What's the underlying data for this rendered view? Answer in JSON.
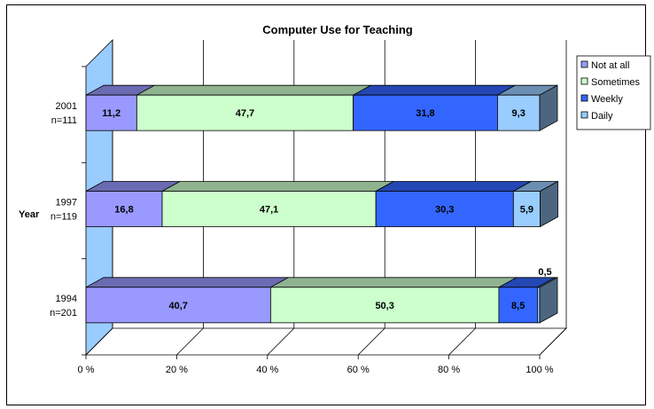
{
  "chart_data": {
    "type": "bar",
    "orientation": "horizontal",
    "stacked": "percent",
    "three_d": true,
    "title": "Computer Use for Teaching",
    "ylabel": "Year",
    "xlabel": "",
    "categories": [
      {
        "line1": "1994",
        "line2": "n=201"
      },
      {
        "line1": "1997",
        "line2": "n=119"
      },
      {
        "line1": "2001",
        "line2": "n=111"
      }
    ],
    "series": [
      {
        "name": "Not at all",
        "values": [
          40.7,
          16.8,
          11.2
        ],
        "labels": [
          "40,7",
          "16,8",
          "11,2"
        ],
        "color": "#9999ff"
      },
      {
        "name": "Sometimes",
        "values": [
          50.3,
          47.1,
          47.7
        ],
        "labels": [
          "50,3",
          "47,1",
          "47,7"
        ],
        "color": "#ccffcc"
      },
      {
        "name": "Weekly",
        "values": [
          8.5,
          30.3,
          31.8
        ],
        "labels": [
          "8,5",
          "30,3",
          "31,8"
        ],
        "color": "#3366ff"
      },
      {
        "name": "Daily",
        "values": [
          0.5,
          5.9,
          9.3
        ],
        "labels": [
          "0,5",
          "5,9",
          "9,3"
        ],
        "color": "#99ccff"
      }
    ],
    "xticks": [
      "0 %",
      "20 %",
      "40 %",
      "60 %",
      "80 %",
      "100 %"
    ],
    "xlim": [
      0,
      100
    ],
    "grid": true,
    "legend_position": "right",
    "wall_color": "#99ccff"
  }
}
